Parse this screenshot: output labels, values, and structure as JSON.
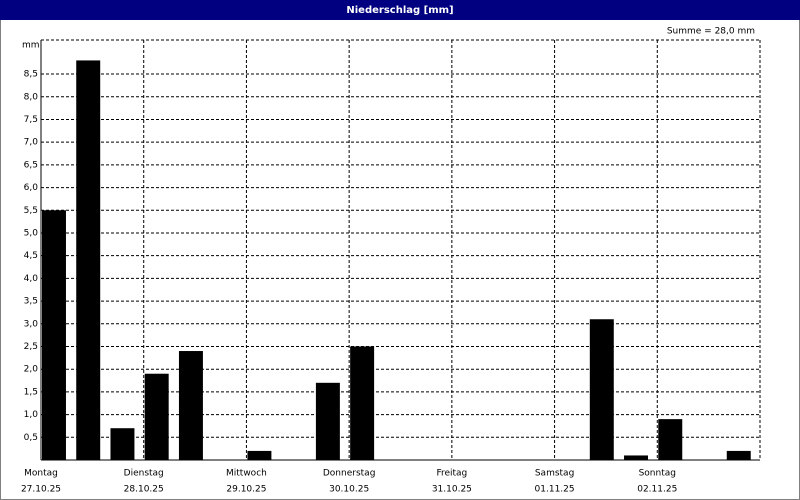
{
  "chart_data": {
    "type": "bar",
    "title": "Niederschlag [mm]",
    "annotation": "Summe = 28,0 mm",
    "y_unit": "mm",
    "x_labels": [
      {
        "day": "Montag",
        "date": "27.10.25"
      },
      {
        "day": "Dienstag",
        "date": "28.10.25"
      },
      {
        "day": "Mittwoch",
        "date": "29.10.25"
      },
      {
        "day": "Donnerstag",
        "date": "30.10.25"
      },
      {
        "day": "Freitag",
        "date": "31.10.25"
      },
      {
        "day": "Samstag",
        "date": "01.11.25"
      },
      {
        "day": "Sonntag",
        "date": "02.11.25"
      }
    ],
    "values": [
      5.5,
      8.8,
      0.7,
      1.9,
      2.4,
      0,
      0.2,
      0,
      1.7,
      2.5,
      0,
      0,
      0,
      0,
      0,
      0,
      3.1,
      0.1,
      0.9,
      0,
      0.2
    ],
    "color": "#000000",
    "ylim": [
      0,
      9.25
    ],
    "yticks": [
      {
        "value": 0.5,
        "label": "0,5"
      },
      {
        "value": 1,
        "label": "1,0"
      },
      {
        "value": 1.5,
        "label": "1,5"
      },
      {
        "value": 2,
        "label": "2,0"
      },
      {
        "value": 2.5,
        "label": "2,5"
      },
      {
        "value": 3,
        "label": "3,0"
      },
      {
        "value": 3.5,
        "label": "3,5"
      },
      {
        "value": 4,
        "label": "4,0"
      },
      {
        "value": 4.5,
        "label": "4,5"
      },
      {
        "value": 5,
        "label": "5,0"
      },
      {
        "value": 5.5,
        "label": "5,5"
      },
      {
        "value": 6,
        "label": "6,0"
      },
      {
        "value": 6.5,
        "label": "6,5"
      },
      {
        "value": 7,
        "label": "7,0"
      },
      {
        "value": 7.5,
        "label": "7,5"
      },
      {
        "value": 8,
        "label": "8,0"
      },
      {
        "value": 8.5,
        "label": "8,5"
      }
    ],
    "grid": true
  }
}
